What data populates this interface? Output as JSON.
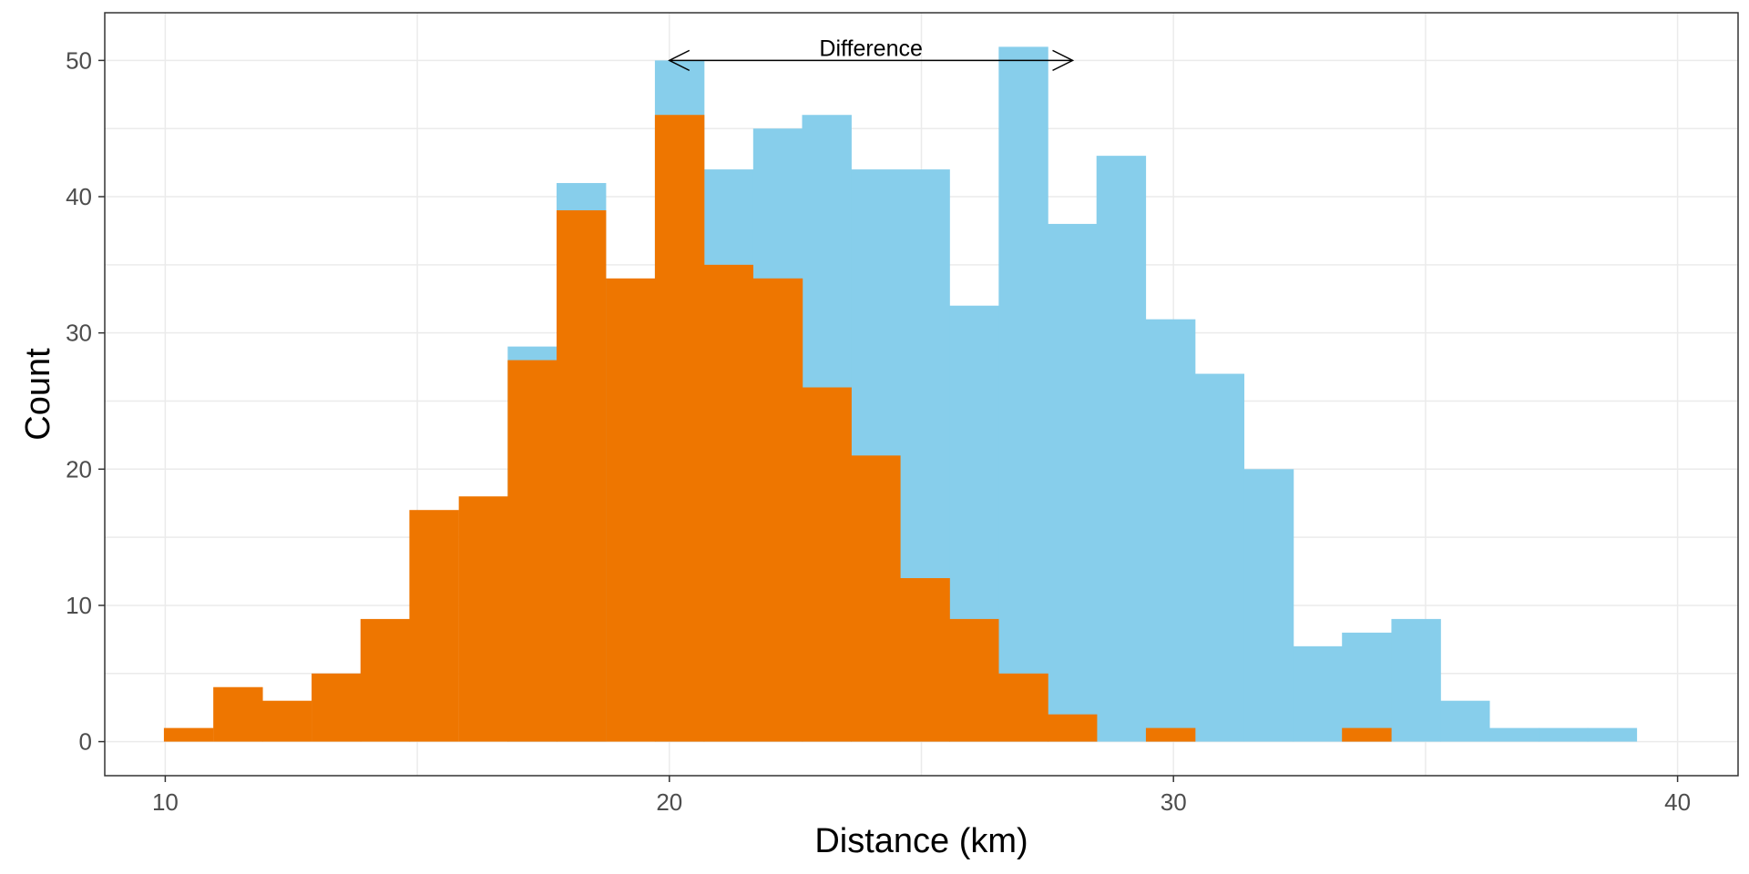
{
  "chart_data": {
    "type": "bar",
    "xlabel": "Distance (km)",
    "ylabel": "Count",
    "xlim": [
      8.8,
      41.2
    ],
    "ylim": [
      -2.5,
      53.5
    ],
    "x_ticks": [
      10,
      20,
      30,
      40
    ],
    "y_ticks": [
      0,
      10,
      20,
      30,
      40,
      50
    ],
    "grid": true,
    "bin_width": 0.974,
    "series": [
      {
        "color": "#87CEEB",
        "bins": [
          {
            "x": 18.25,
            "y": 41
          },
          {
            "x": 17.28,
            "y": 29
          },
          {
            "x": 20.2,
            "y": 50
          },
          {
            "x": 21.17,
            "y": 42
          },
          {
            "x": 22.15,
            "y": 45
          },
          {
            "x": 23.12,
            "y": 46
          },
          {
            "x": 24.09,
            "y": 42
          },
          {
            "x": 25.07,
            "y": 42
          },
          {
            "x": 26.04,
            "y": 32
          },
          {
            "x": 27.02,
            "y": 51
          },
          {
            "x": 27.99,
            "y": 38
          },
          {
            "x": 28.96,
            "y": 43
          },
          {
            "x": 29.94,
            "y": 31
          },
          {
            "x": 30.91,
            "y": 27
          },
          {
            "x": 31.89,
            "y": 20
          },
          {
            "x": 32.86,
            "y": 7
          },
          {
            "x": 33.83,
            "y": 8
          },
          {
            "x": 34.81,
            "y": 9
          },
          {
            "x": 35.78,
            "y": 3
          },
          {
            "x": 36.76,
            "y": 1
          },
          {
            "x": 37.73,
            "y": 1
          },
          {
            "x": 38.7,
            "y": 1
          }
        ]
      },
      {
        "color": "#EE7600",
        "bins": [
          {
            "x": 10.46,
            "y": 1
          },
          {
            "x": 11.44,
            "y": 4
          },
          {
            "x": 12.41,
            "y": 3
          },
          {
            "x": 13.39,
            "y": 5
          },
          {
            "x": 14.36,
            "y": 9
          },
          {
            "x": 15.33,
            "y": 17
          },
          {
            "x": 16.31,
            "y": 18
          },
          {
            "x": 17.28,
            "y": 28
          },
          {
            "x": 18.25,
            "y": 39
          },
          {
            "x": 19.23,
            "y": 34
          },
          {
            "x": 20.2,
            "y": 46
          },
          {
            "x": 21.17,
            "y": 35
          },
          {
            "x": 22.15,
            "y": 34
          },
          {
            "x": 23.12,
            "y": 26
          },
          {
            "x": 24.09,
            "y": 21
          },
          {
            "x": 25.07,
            "y": 12
          },
          {
            "x": 26.04,
            "y": 9
          },
          {
            "x": 27.02,
            "y": 5
          },
          {
            "x": 27.99,
            "y": 2
          },
          {
            "x": 29.94,
            "y": 1
          },
          {
            "x": 33.83,
            "y": 1
          }
        ]
      }
    ],
    "annotation": {
      "text": "Difference",
      "x_start": 20.0,
      "x_end": 28.0,
      "y": 50
    }
  }
}
